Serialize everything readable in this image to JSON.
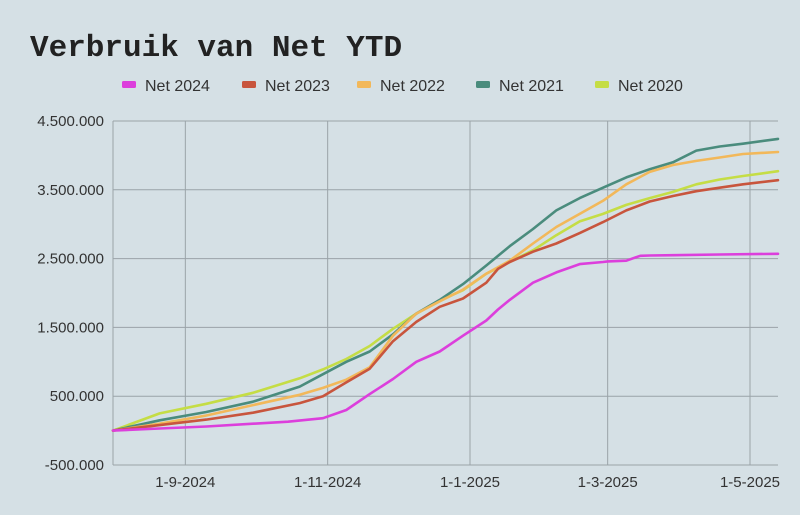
{
  "chart_data": {
    "type": "line",
    "title": "Verbruik van Net YTD",
    "xlabel": "",
    "ylabel": "",
    "legend_position": "top",
    "grid": true,
    "x_ticks": [
      "1-9-2024",
      "1-11-2024",
      "1-1-2025",
      "1-3-2025",
      "1-5-2025"
    ],
    "x_tick_days": [
      31,
      92,
      153,
      212,
      273
    ],
    "x_range_days": [
      0,
      285
    ],
    "x_origin": "1-8-2024",
    "y_ticks": [
      -500000,
      500000,
      1500000,
      2500000,
      3500000,
      4500000
    ],
    "y_tick_labels": [
      "-500.000",
      "500.000",
      "1.500.000",
      "2.500.000",
      "3.500.000",
      "4.500.000"
    ],
    "ylim": [
      -500000,
      4500000
    ],
    "series": [
      {
        "name": "Net 2024",
        "color": "#dc3fdc",
        "x": [
          0,
          20,
          40,
          60,
          75,
          90,
          100,
          110,
          120,
          130,
          140,
          150,
          160,
          165,
          170,
          180,
          190,
          200,
          210,
          212,
          220,
          226,
          230,
          240,
          260,
          285
        ],
        "y": [
          0,
          30000,
          60000,
          100000,
          130000,
          180000,
          300000,
          530000,
          750000,
          1000000,
          1150000,
          1380000,
          1600000,
          1760000,
          1900000,
          2150000,
          2300000,
          2420000,
          2450000,
          2460000,
          2470000,
          2540000,
          2545000,
          2550000,
          2560000,
          2570000
        ]
      },
      {
        "name": "Net 2023",
        "color": "#c8553d",
        "x": [
          0,
          20,
          40,
          60,
          80,
          90,
          100,
          110,
          120,
          130,
          140,
          150,
          160,
          165,
          170,
          180,
          190,
          200,
          210,
          220,
          230,
          240,
          250,
          260,
          270,
          285
        ],
        "y": [
          0,
          80000,
          160000,
          260000,
          400000,
          500000,
          700000,
          900000,
          1300000,
          1580000,
          1800000,
          1920000,
          2150000,
          2350000,
          2450000,
          2600000,
          2720000,
          2870000,
          3030000,
          3200000,
          3330000,
          3410000,
          3480000,
          3530000,
          3580000,
          3640000
        ]
      },
      {
        "name": "Net 2022",
        "color": "#f2b85a",
        "x": [
          0,
          20,
          40,
          60,
          80,
          90,
          100,
          110,
          120,
          130,
          140,
          150,
          160,
          170,
          180,
          190,
          200,
          210,
          220,
          230,
          240,
          250,
          260,
          270,
          285
        ],
        "y": [
          0,
          100000,
          220000,
          370000,
          520000,
          620000,
          740000,
          920000,
          1380000,
          1700000,
          1880000,
          2050000,
          2280000,
          2470000,
          2720000,
          2960000,
          3150000,
          3340000,
          3580000,
          3760000,
          3860000,
          3920000,
          3970000,
          4020000,
          4050000
        ]
      },
      {
        "name": "Net 2021",
        "color": "#4a8c7d",
        "x": [
          0,
          20,
          40,
          60,
          80,
          90,
          100,
          110,
          120,
          130,
          140,
          150,
          160,
          170,
          180,
          190,
          200,
          210,
          220,
          230,
          240,
          250,
          260,
          270,
          285
        ],
        "y": [
          0,
          150000,
          270000,
          420000,
          640000,
          820000,
          1000000,
          1150000,
          1400000,
          1700000,
          1900000,
          2130000,
          2400000,
          2680000,
          2930000,
          3200000,
          3380000,
          3530000,
          3680000,
          3800000,
          3900000,
          4070000,
          4130000,
          4170000,
          4240000
        ]
      },
      {
        "name": "Net 2020",
        "color": "#c5dd45",
        "x": [
          0,
          20,
          40,
          60,
          80,
          90,
          100,
          110,
          120,
          130,
          140,
          150,
          160,
          170,
          180,
          190,
          200,
          210,
          220,
          230,
          240,
          250,
          260,
          270,
          285
        ],
        "y": [
          0,
          250000,
          390000,
          550000,
          760000,
          890000,
          1040000,
          1230000,
          1480000,
          1700000,
          1890000,
          2040000,
          2280000,
          2450000,
          2620000,
          2840000,
          3040000,
          3150000,
          3280000,
          3380000,
          3470000,
          3580000,
          3650000,
          3700000,
          3770000
        ]
      }
    ]
  }
}
